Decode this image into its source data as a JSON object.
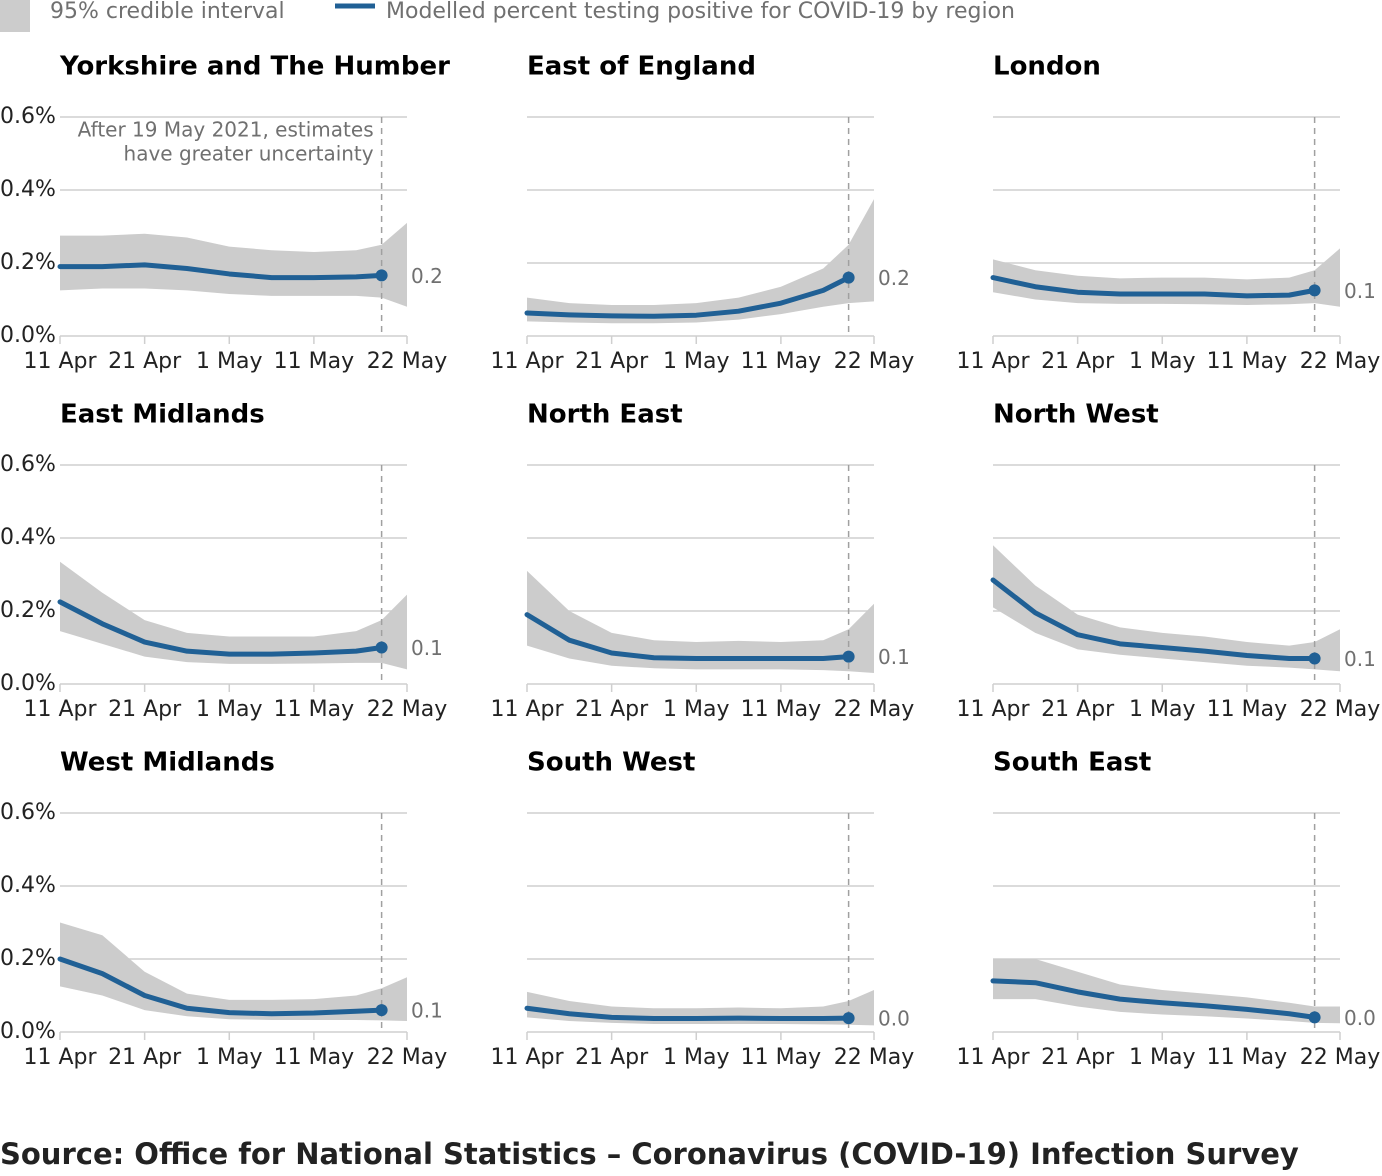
{
  "legend": {
    "interval": {
      "name": "95% credible interval",
      "color": "#cccccc"
    },
    "line": {
      "name": "Modelled percent testing positive for COVID-19 by region",
      "color": "#206095"
    }
  },
  "annotation": {
    "x": "19 May",
    "lines": [
      "After 19 May 2021, estimates",
      "have greater uncertainty"
    ]
  },
  "source": "Source: Office for National Statistics – Coronavirus (COVID-19) Infection Survey",
  "chart_data": [
    {
      "type": "band-line",
      "title": "Yorkshire and The Humber",
      "x": [
        "11 Apr",
        "16 Apr",
        "21 Apr",
        "26 Apr",
        "1 May",
        "6 May",
        "11 May",
        "16 May",
        "19 May",
        "22 May"
      ],
      "values": [
        0.19,
        0.19,
        0.195,
        0.185,
        0.17,
        0.16,
        0.16,
        0.162,
        0.166,
        null
      ],
      "value_labels": [
        null,
        null,
        null,
        null,
        null,
        null,
        null,
        null,
        "0.2",
        null
      ],
      "lower": [
        0.125,
        0.13,
        0.13,
        0.125,
        0.115,
        0.11,
        0.11,
        0.11,
        0.105,
        0.08
      ],
      "upper": [
        0.275,
        0.275,
        0.28,
        0.27,
        0.245,
        0.235,
        0.23,
        0.235,
        0.25,
        0.31
      ],
      "xlim": [
        "11 Apr",
        "22 May"
      ],
      "xticks": [
        "11 Apr",
        "21 Apr",
        "1 May",
        "11 May",
        "22 May"
      ],
      "ylim": [
        0,
        0.6
      ],
      "yticks": [
        {
          "value": 0,
          "label": "0.0%"
        },
        {
          "value": 0.2,
          "label": "0.2%"
        },
        {
          "value": 0.4,
          "label": "0.4%"
        },
        {
          "value": 0.6,
          "label": "0.6%"
        }
      ]
    },
    {
      "type": "band-line",
      "title": "East of England",
      "x": [
        "11 Apr",
        "16 Apr",
        "21 Apr",
        "26 Apr",
        "1 May",
        "6 May",
        "11 May",
        "16 May",
        "19 May",
        "22 May"
      ],
      "values": [
        0.063,
        0.058,
        0.055,
        0.054,
        0.057,
        0.068,
        0.09,
        0.125,
        0.16,
        null
      ],
      "value_labels": [
        null,
        null,
        null,
        null,
        null,
        null,
        null,
        null,
        "0.2",
        null
      ],
      "lower": [
        0.04,
        0.037,
        0.035,
        0.035,
        0.037,
        0.045,
        0.06,
        0.08,
        0.09,
        0.095
      ],
      "upper": [
        0.105,
        0.09,
        0.085,
        0.085,
        0.09,
        0.105,
        0.135,
        0.185,
        0.25,
        0.375
      ],
      "xlim": [
        "11 Apr",
        "22 May"
      ],
      "xticks": [
        "11 Apr",
        "21 Apr",
        "1 May",
        "11 May",
        "22 May"
      ],
      "ylim": [
        0,
        0.6
      ],
      "yticks": [
        0,
        0.2,
        0.4,
        0.6
      ]
    },
    {
      "type": "band-line",
      "title": "London",
      "x": [
        "11 Apr",
        "16 Apr",
        "21 Apr",
        "26 Apr",
        "1 May",
        "6 May",
        "11 May",
        "16 May",
        "19 May",
        "22 May"
      ],
      "values": [
        0.16,
        0.135,
        0.12,
        0.115,
        0.115,
        0.115,
        0.11,
        0.112,
        0.125,
        null
      ],
      "value_labels": [
        null,
        null,
        null,
        null,
        null,
        null,
        null,
        null,
        "0.1",
        null
      ],
      "lower": [
        0.12,
        0.1,
        0.09,
        0.088,
        0.088,
        0.087,
        0.085,
        0.087,
        0.09,
        0.08
      ],
      "upper": [
        0.21,
        0.18,
        0.165,
        0.158,
        0.16,
        0.16,
        0.155,
        0.16,
        0.18,
        0.24
      ],
      "xlim": [
        "11 Apr",
        "22 May"
      ],
      "xticks": [
        "11 Apr",
        "21 Apr",
        "1 May",
        "11 May",
        "22 May"
      ],
      "ylim": [
        0,
        0.6
      ],
      "yticks": [
        0,
        0.2,
        0.4,
        0.6
      ]
    },
    {
      "type": "band-line",
      "title": "East Midlands",
      "x": [
        "11 Apr",
        "16 Apr",
        "21 Apr",
        "26 Apr",
        "1 May",
        "6 May",
        "11 May",
        "16 May",
        "19 May",
        "22 May"
      ],
      "values": [
        0.225,
        0.165,
        0.115,
        0.09,
        0.082,
        0.082,
        0.085,
        0.09,
        0.1,
        null
      ],
      "value_labels": [
        null,
        null,
        null,
        null,
        null,
        null,
        null,
        null,
        "0.1",
        null
      ],
      "lower": [
        0.145,
        0.11,
        0.075,
        0.06,
        0.055,
        0.055,
        0.056,
        0.058,
        0.058,
        0.04
      ],
      "upper": [
        0.335,
        0.25,
        0.175,
        0.14,
        0.13,
        0.13,
        0.13,
        0.145,
        0.175,
        0.245
      ],
      "xlim": [
        "11 Apr",
        "22 May"
      ],
      "xticks": [
        "11 Apr",
        "21 Apr",
        "1 May",
        "11 May",
        "22 May"
      ],
      "ylim": [
        0,
        0.6
      ],
      "yticks": [
        {
          "value": 0,
          "label": "0.0%"
        },
        {
          "value": 0.2,
          "label": "0.2%"
        },
        {
          "value": 0.4,
          "label": "0.4%"
        },
        {
          "value": 0.6,
          "label": "0.6%"
        }
      ]
    },
    {
      "type": "band-line",
      "title": "North East",
      "x": [
        "11 Apr",
        "16 Apr",
        "21 Apr",
        "26 Apr",
        "1 May",
        "6 May",
        "11 May",
        "16 May",
        "19 May",
        "22 May"
      ],
      "values": [
        0.19,
        0.12,
        0.085,
        0.072,
        0.07,
        0.07,
        0.07,
        0.07,
        0.075,
        null
      ],
      "value_labels": [
        null,
        null,
        null,
        null,
        null,
        null,
        null,
        null,
        "0.1",
        null
      ],
      "lower": [
        0.105,
        0.07,
        0.05,
        0.043,
        0.04,
        0.04,
        0.04,
        0.038,
        0.035,
        0.03
      ],
      "upper": [
        0.31,
        0.2,
        0.14,
        0.12,
        0.115,
        0.118,
        0.115,
        0.12,
        0.15,
        0.22
      ],
      "xlim": [
        "11 Apr",
        "22 May"
      ],
      "xticks": [
        "11 Apr",
        "21 Apr",
        "1 May",
        "11 May",
        "22 May"
      ],
      "ylim": [
        0,
        0.6
      ],
      "yticks": [
        0,
        0.2,
        0.4,
        0.6
      ]
    },
    {
      "type": "band-line",
      "title": "North West",
      "x": [
        "11 Apr",
        "16 Apr",
        "21 Apr",
        "26 Apr",
        "1 May",
        "6 May",
        "11 May",
        "16 May",
        "19 May",
        "22 May"
      ],
      "values": [
        0.285,
        0.195,
        0.135,
        0.11,
        0.1,
        0.09,
        0.078,
        0.07,
        0.07,
        null
      ],
      "value_labels": [
        null,
        null,
        null,
        null,
        null,
        null,
        null,
        null,
        "0.1",
        null
      ],
      "lower": [
        0.21,
        0.14,
        0.095,
        0.08,
        0.07,
        0.06,
        0.05,
        0.045,
        0.04,
        0.035
      ],
      "upper": [
        0.38,
        0.27,
        0.19,
        0.155,
        0.14,
        0.13,
        0.115,
        0.105,
        0.115,
        0.15
      ],
      "xlim": [
        "11 Apr",
        "22 May"
      ],
      "xticks": [
        "11 Apr",
        "21 Apr",
        "1 May",
        "11 May",
        "22 May"
      ],
      "ylim": [
        0,
        0.6
      ],
      "yticks": [
        0,
        0.2,
        0.4,
        0.6
      ]
    },
    {
      "type": "band-line",
      "title": "West Midlands",
      "x": [
        "11 Apr",
        "16 Apr",
        "21 Apr",
        "26 Apr",
        "1 May",
        "6 May",
        "11 May",
        "16 May",
        "19 May",
        "22 May"
      ],
      "values": [
        0.2,
        0.16,
        0.1,
        0.065,
        0.053,
        0.05,
        0.052,
        0.057,
        0.06,
        null
      ],
      "value_labels": [
        null,
        null,
        null,
        null,
        null,
        null,
        null,
        null,
        "0.1",
        null
      ],
      "lower": [
        0.125,
        0.1,
        0.06,
        0.043,
        0.035,
        0.033,
        0.033,
        0.033,
        0.032,
        0.03
      ],
      "upper": [
        0.3,
        0.265,
        0.165,
        0.105,
        0.088,
        0.088,
        0.09,
        0.1,
        0.12,
        0.15
      ],
      "xlim": [
        "11 Apr",
        "22 May"
      ],
      "xticks": [
        "11 Apr",
        "21 Apr",
        "1 May",
        "11 May",
        "22 May"
      ],
      "ylim": [
        0,
        0.6
      ],
      "yticks": [
        {
          "value": 0,
          "label": "0.0%"
        },
        {
          "value": 0.2,
          "label": "0.2%"
        },
        {
          "value": 0.4,
          "label": "0.4%"
        },
        {
          "value": 0.6,
          "label": "0.6%"
        }
      ]
    },
    {
      "type": "band-line",
      "title": "South West",
      "x": [
        "11 Apr",
        "16 Apr",
        "21 Apr",
        "26 Apr",
        "1 May",
        "6 May",
        "11 May",
        "16 May",
        "19 May",
        "22 May"
      ],
      "values": [
        0.065,
        0.05,
        0.04,
        0.037,
        0.037,
        0.038,
        0.037,
        0.037,
        0.038,
        null
      ],
      "value_labels": [
        null,
        null,
        null,
        null,
        null,
        null,
        null,
        null,
        "0.0",
        null
      ],
      "lower": [
        0.04,
        0.03,
        0.025,
        0.022,
        0.022,
        0.022,
        0.022,
        0.021,
        0.02,
        0.018
      ],
      "upper": [
        0.11,
        0.085,
        0.07,
        0.065,
        0.065,
        0.067,
        0.065,
        0.07,
        0.085,
        0.115
      ],
      "xlim": [
        "11 Apr",
        "22 May"
      ],
      "xticks": [
        "11 Apr",
        "21 Apr",
        "1 May",
        "11 May",
        "22 May"
      ],
      "ylim": [
        0,
        0.6
      ],
      "yticks": [
        0,
        0.2,
        0.4,
        0.6
      ]
    },
    {
      "type": "band-line",
      "title": "South East",
      "x": [
        "11 Apr",
        "16 Apr",
        "21 Apr",
        "26 Apr",
        "1 May",
        "6 May",
        "11 May",
        "16 May",
        "19 May",
        "22 May"
      ],
      "values": [
        0.14,
        0.135,
        0.11,
        0.09,
        0.08,
        0.072,
        0.062,
        0.05,
        0.04,
        null
      ],
      "value_labels": [
        null,
        null,
        null,
        null,
        null,
        null,
        null,
        null,
        "0.0",
        null
      ],
      "lower": [
        0.09,
        0.09,
        0.07,
        0.055,
        0.048,
        0.043,
        0.037,
        0.03,
        0.025,
        0.024
      ],
      "upper": [
        0.2,
        0.2,
        0.165,
        0.13,
        0.115,
        0.105,
        0.095,
        0.08,
        0.07,
        0.07
      ],
      "xlim": [
        "11 Apr",
        "22 May"
      ],
      "xticks": [
        "11 Apr",
        "21 Apr",
        "1 May",
        "11 May",
        "22 May"
      ],
      "ylim": [
        0,
        0.6
      ],
      "yticks": [
        0,
        0.2,
        0.4,
        0.6
      ]
    }
  ]
}
